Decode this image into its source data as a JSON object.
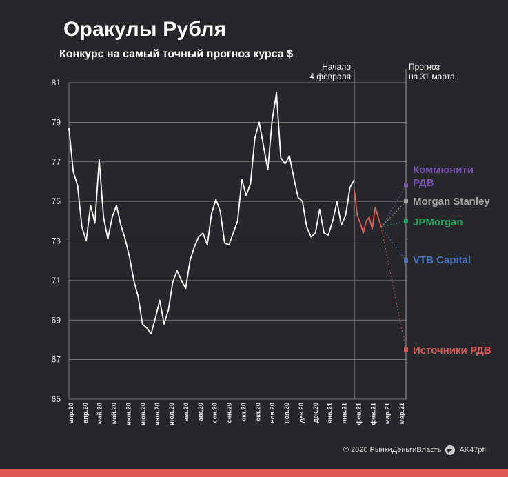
{
  "header": {
    "title": "Оракулы Рубля",
    "subtitle": "Конкурс на самый точный прогноз курса $"
  },
  "footer": {
    "copyright": "© 2020  РынкиДеньгиВласть",
    "channel": "AK47pfl"
  },
  "colors": {
    "background": "#26272b",
    "history_line": "#ffffff",
    "after_start_line": "#e05a55",
    "grid": "#8a8a8a"
  },
  "chart_data": {
    "type": "line",
    "ylim": [
      65,
      81
    ],
    "yticks": [
      65,
      67,
      69,
      71,
      73,
      75,
      77,
      79,
      81
    ],
    "grid": true,
    "xtick_labels": [
      "апр.20",
      "апр.20",
      "май.20",
      "май.20",
      "июн.20",
      "июн.20",
      "июл.20",
      "июл.20",
      "авг.20",
      "авг.20",
      "сен.20",
      "сен.20",
      "окт.20",
      "окт.20",
      "ноя.20",
      "ноя.20",
      "дек.20",
      "дек.20",
      "янв.21",
      "янв.21",
      "фев.21",
      "фев.21",
      "мар.21",
      "мар.21"
    ],
    "annotations": {
      "start": "Начало\n4 февраля",
      "forecast": "Прогноз\nна 31 марта"
    },
    "series": [
      {
        "kind": "history",
        "values": [
          78.7,
          76.5,
          75.8,
          73.7,
          73.0,
          74.8,
          73.9,
          77.1,
          74.2,
          73.1,
          74.2,
          74.8,
          73.8,
          73.1,
          72.2,
          71.0,
          70.2,
          68.8,
          68.6,
          68.3,
          69.1,
          70.0,
          68.8,
          69.5,
          70.9,
          71.5,
          71.0,
          70.6,
          72.0,
          72.7,
          73.2,
          73.4,
          72.8,
          74.4,
          75.1,
          74.5,
          72.9,
          72.8,
          73.4,
          74.0,
          76.1,
          75.3,
          75.9,
          78.2,
          79.0,
          77.8,
          76.6,
          79.1,
          80.5,
          77.2,
          76.9,
          77.3,
          76.2,
          75.2,
          75.0,
          73.7,
          73.2,
          73.4,
          74.6,
          73.4,
          73.3,
          74.0,
          75.0,
          73.8,
          74.3,
          75.7,
          76.1
        ]
      },
      {
        "kind": "after_start",
        "values": [
          75.6,
          74.3,
          73.9,
          73.4,
          74.0,
          74.2,
          73.6,
          74.7,
          74.2,
          73.7
        ]
      }
    ],
    "forecasts": [
      {
        "name": "Коммюнити РДВ",
        "label_lines": [
          "Коммюнити",
          "РДВ"
        ],
        "value": 75.8,
        "color": "#7b52b0"
      },
      {
        "name": "Morgan Stanley",
        "label_lines": [
          "Morgan Stanley"
        ],
        "value": 75.0,
        "color": "#a7a7a7"
      },
      {
        "name": "JPMorgan",
        "label_lines": [
          "JPMorgan"
        ],
        "value": 74.0,
        "color": "#1fa65c"
      },
      {
        "name": "VTB Capital",
        "label_lines": [
          "VTB Capital"
        ],
        "value": 72.0,
        "color": "#4a73c0"
      },
      {
        "name": "Источники РДВ",
        "label_lines": [
          "Источники РДВ"
        ],
        "value": 67.5,
        "color": "#e05a55"
      }
    ]
  }
}
